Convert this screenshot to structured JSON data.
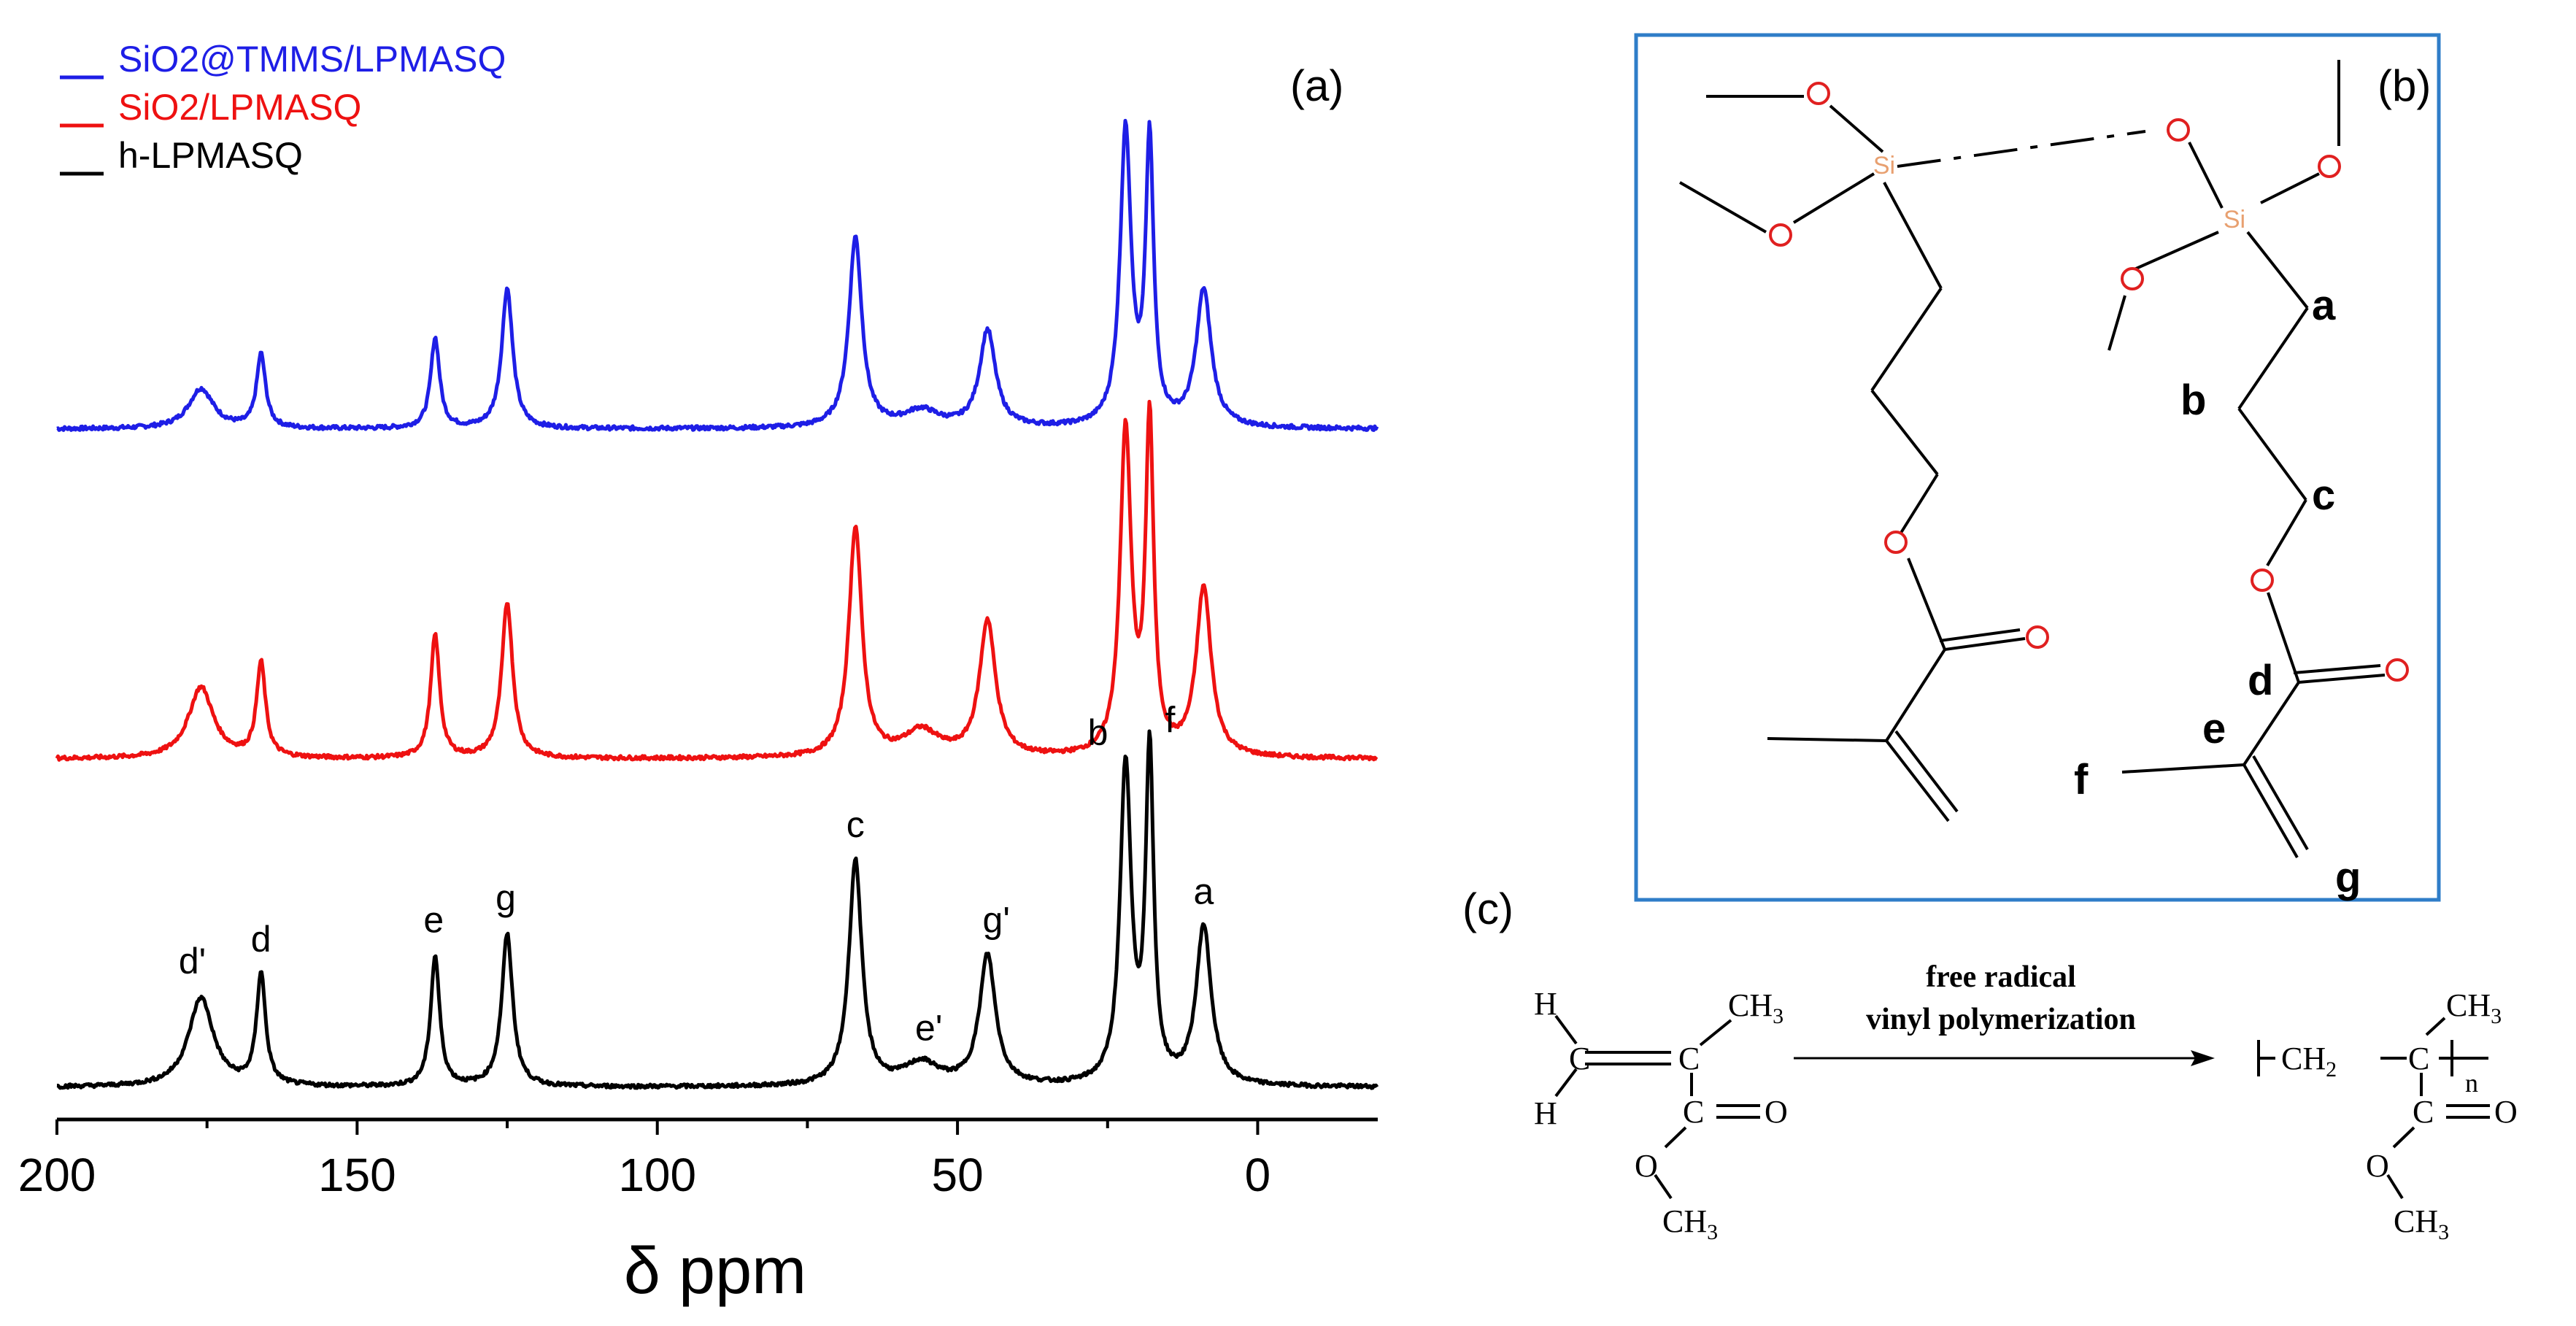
{
  "panels": {
    "a": {
      "label": "(a)"
    },
    "b": {
      "label": "(b)"
    },
    "c": {
      "label": "(c)"
    }
  },
  "chart_data": {
    "type": "line",
    "xlabel": "δ ppm",
    "x_ticks": [
      "200",
      "150",
      "100",
      "50",
      "0"
    ],
    "xlim": [
      200,
      -20
    ],
    "x_reversed": true,
    "y_ticks_shown": false,
    "legend_position": "top-left",
    "series": [
      {
        "name": "SiO2@TMMS/LPMASQ",
        "color": "#1e1ee6"
      },
      {
        "name": "SiO2/LPMASQ",
        "color": "#ee1111"
      },
      {
        "name": "h-LPMASQ",
        "color": "#000000"
      }
    ],
    "peaks": [
      {
        "label": "d'",
        "ppm": 176,
        "heights": [
          0.12,
          0.22,
          0.28
        ],
        "width": 2.5
      },
      {
        "label": "d",
        "ppm": 166,
        "heights": [
          0.22,
          0.29,
          0.35
        ],
        "width": 0.9
      },
      {
        "label": "e",
        "ppm": 137,
        "heights": [
          0.27,
          0.38,
          0.41
        ],
        "width": 0.9
      },
      {
        "label": "g",
        "ppm": 125,
        "heights": [
          0.42,
          0.48,
          0.48
        ],
        "width": 1.1
      },
      {
        "label": "c",
        "ppm": 67,
        "heights": [
          0.57,
          0.71,
          0.71
        ],
        "width": 1.3
      },
      {
        "label": "e'",
        "ppm": 56,
        "heights": [
          0.05,
          0.08,
          0.07
        ],
        "width": 3.5
      },
      {
        "label": "g'",
        "ppm": 45,
        "heights": [
          0.29,
          0.42,
          0.41
        ],
        "width": 1.6
      },
      {
        "label": "b",
        "ppm": 22,
        "heights": [
          0.88,
          1.0,
          1.0
        ],
        "width": 1.1
      },
      {
        "label": "f",
        "ppm": 18,
        "heights": [
          0.84,
          1.02,
          1.04
        ],
        "width": 0.8
      },
      {
        "label": "a",
        "ppm": 9,
        "heights": [
          0.41,
          0.52,
          0.5
        ],
        "width": 1.5
      }
    ]
  },
  "structure": {
    "atoms": {
      "oxygen": "O",
      "silicon": "Si"
    },
    "carbon_labels": [
      "a",
      "b",
      "c",
      "d",
      "e",
      "f",
      "g"
    ],
    "box_color": "#2f7dc8",
    "o_color": "#e02020",
    "si_color": "#e8a070"
  },
  "reaction": {
    "arrow_top": "free radical",
    "arrow_bottom": "vinyl polymerization",
    "reactant": {
      "h_top": "H",
      "h_bottom": "H",
      "ch3": "CH",
      "c": "C",
      "o_carbonyl": "O",
      "o_ester": "O",
      "ch3_ester": "CH"
    },
    "product": {
      "ch2": "CH",
      "n": "n",
      "ch3": "CH",
      "c": "C",
      "o_carbonyl": "O",
      "o_ester": "O",
      "ch3_ester": "CH"
    },
    "sub2": "2",
    "sub3": "3"
  }
}
